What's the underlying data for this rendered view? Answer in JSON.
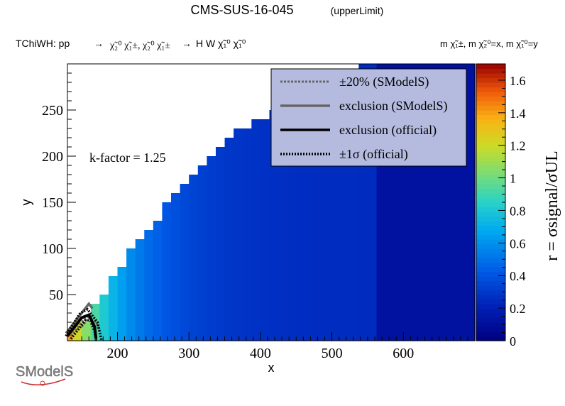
{
  "chart_data": {
    "type": "heatmap",
    "title": "CMS-SUS-16-045",
    "title_suffix": "(upperLimit)",
    "process_prefix": "TChiWH: pp",
    "process_pairs": "χ̃₂⁰ χ̃₁±, χ̃₂⁰ χ̃₁±",
    "process_final": "H W χ̃₁⁰ χ̃₁⁰",
    "mass_note": "m χ̃₁±, m χ̃₂⁰=x, m χ̃₁⁰=y",
    "xlabel": "x",
    "ylabel": "y",
    "zlabel": "r = σsignal/σUL",
    "kfactor_label": "k-factor = 1.25",
    "xlim": [
      130,
      700
    ],
    "ylim": [
      0,
      300
    ],
    "zlim": [
      0,
      1.7
    ],
    "xticks": [
      200,
      300,
      400,
      500,
      600
    ],
    "yticks": [
      50,
      100,
      150,
      200,
      250
    ],
    "zticks": [
      0,
      0.2,
      0.4,
      0.6,
      0.8,
      1,
      1.2,
      1.4,
      1.6
    ],
    "grid": {
      "x_start": 125,
      "x_step": 12.5,
      "y_start": 0,
      "y_step": 10,
      "y_max_by_x": [
        [
          125,
          10
        ],
        [
          150,
          20
        ],
        [
          175,
          50
        ],
        [
          200,
          80
        ],
        [
          250,
          130
        ],
        [
          300,
          180
        ],
        [
          350,
          220
        ],
        [
          400,
          240
        ],
        [
          450,
          260
        ],
        [
          500,
          280
        ],
        [
          525,
          290
        ],
        [
          600,
          300
        ],
        [
          650,
          300
        ]
      ],
      "x_max": 700
    },
    "r_model": "estimated from color scale: r decreases with x",
    "legend": {
      "placement": "top-right",
      "entries": [
        {
          "label": "±20% (SModelS)",
          "style": "dotted",
          "color": "#666666"
        },
        {
          "label": "exclusion (SModelS)",
          "style": "solid",
          "color": "#666666"
        },
        {
          "label": "exclusion (official)",
          "style": "solid",
          "color": "#000000"
        },
        {
          "label": "±1σ (official)",
          "style": "dotted",
          "color": "#000000"
        }
      ]
    },
    "exclusion_official": [
      [
        130,
        5
      ],
      [
        140,
        15
      ],
      [
        150,
        25
      ],
      [
        160,
        28
      ],
      [
        168,
        15
      ],
      [
        170,
        2
      ]
    ],
    "exclusion_official_pm1s": [
      [
        [
          135,
          2
        ],
        [
          145,
          12
        ],
        [
          155,
          22
        ],
        [
          162,
          22
        ],
        [
          168,
          10
        ],
        [
          170,
          0
        ]
      ],
      [
        [
          128,
          5
        ],
        [
          138,
          18
        ],
        [
          148,
          30
        ],
        [
          158,
          34
        ],
        [
          172,
          20
        ],
        [
          178,
          0
        ]
      ]
    ],
    "exclusion_smodels": [
      [
        128,
        8
      ],
      [
        140,
        20
      ],
      [
        150,
        30
      ],
      [
        160,
        40
      ],
      [
        165,
        35
      ]
    ],
    "exclusion_smodels_pm20": [
      [
        [
          135,
          5
        ],
        [
          145,
          15
        ],
        [
          155,
          25
        ],
        [
          162,
          28
        ]
      ],
      [
        [
          150,
          15
        ],
        [
          160,
          25
        ],
        [
          170,
          20
        ],
        [
          175,
          10
        ]
      ]
    ]
  },
  "logo": {
    "text": "SModelS"
  }
}
